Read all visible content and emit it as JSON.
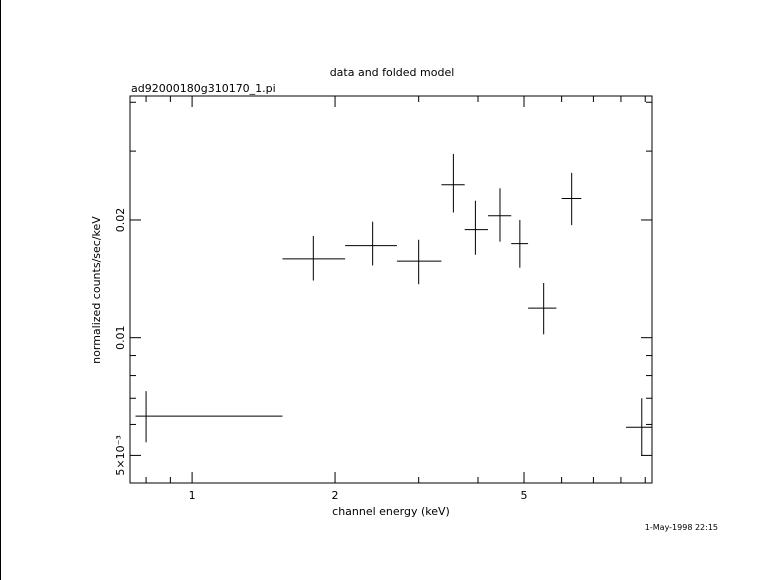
{
  "chart_data": {
    "type": "scatter",
    "title": "data and folded model",
    "subtitle": "ad92000180g310170_1.pi",
    "xlabel": "channel energy (keV)",
    "ylabel": "normalized counts/sec/keV",
    "x_scale": "log",
    "y_scale": "log",
    "xlim": [
      0.74,
      9.3
    ],
    "ylim": [
      0.00425,
      0.0415
    ],
    "x_ticks": [
      "1",
      "2",
      "5"
    ],
    "y_ticks": [
      "5×10⁻³",
      "0.01",
      "0.02"
    ],
    "grid": false,
    "timestamp": "1-May-1998 22:15",
    "points": [
      {
        "x": 0.8,
        "xlo": 0.76,
        "xhi": 1.55,
        "y": 0.0063,
        "ylo": 0.0054,
        "yhi": 0.0073
      },
      {
        "x": 1.8,
        "xlo": 1.55,
        "xhi": 2.1,
        "y": 0.0159,
        "ylo": 0.014,
        "yhi": 0.0182
      },
      {
        "x": 2.4,
        "xlo": 2.1,
        "xhi": 2.7,
        "y": 0.0172,
        "ylo": 0.0153,
        "yhi": 0.0198
      },
      {
        "x": 3.0,
        "xlo": 2.7,
        "xhi": 3.35,
        "y": 0.0157,
        "ylo": 0.0137,
        "yhi": 0.0178
      },
      {
        "x": 3.55,
        "xlo": 3.35,
        "xhi": 3.75,
        "y": 0.0246,
        "ylo": 0.0209,
        "yhi": 0.0295
      },
      {
        "x": 3.95,
        "xlo": 3.75,
        "xhi": 4.2,
        "y": 0.0189,
        "ylo": 0.0163,
        "yhi": 0.0224
      },
      {
        "x": 4.45,
        "xlo": 4.2,
        "xhi": 4.7,
        "y": 0.0205,
        "ylo": 0.0176,
        "yhi": 0.0241
      },
      {
        "x": 4.9,
        "xlo": 4.7,
        "xhi": 5.1,
        "y": 0.0174,
        "ylo": 0.0151,
        "yhi": 0.02
      },
      {
        "x": 5.5,
        "xlo": 5.1,
        "xhi": 5.85,
        "y": 0.0119,
        "ylo": 0.0102,
        "yhi": 0.0138
      },
      {
        "x": 6.3,
        "xlo": 6.0,
        "xhi": 6.6,
        "y": 0.0227,
        "ylo": 0.0194,
        "yhi": 0.0264
      },
      {
        "x": 8.85,
        "xlo": 8.2,
        "xhi": 9.3,
        "y": 0.0059,
        "ylo": 0.005,
        "yhi": 0.007
      }
    ]
  }
}
